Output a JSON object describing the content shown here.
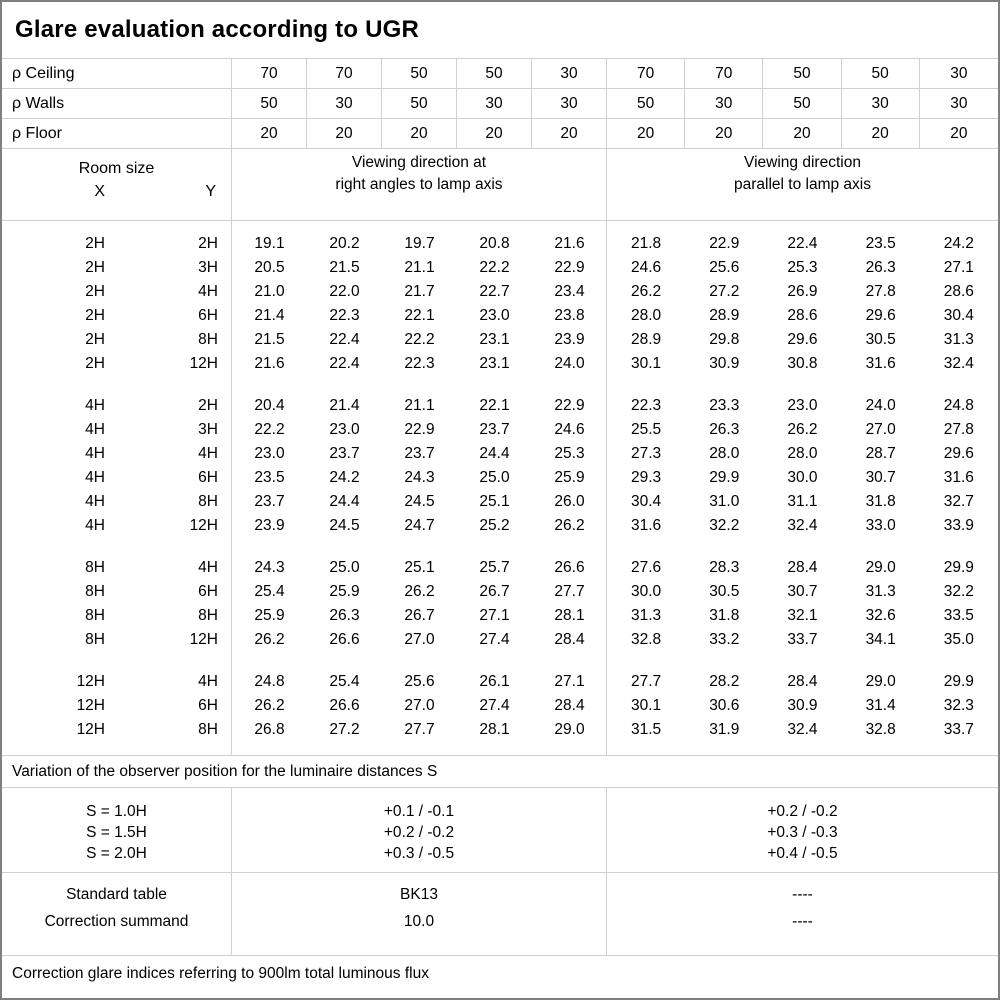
{
  "title": "Glare evaluation according to UGR",
  "colors": {
    "outer_border": "#7f7f7f",
    "grid_line": "#d0d0d0",
    "text": "#000000",
    "background": "#ffffff"
  },
  "reflectance": {
    "rows": [
      {
        "label": "ρ Ceiling",
        "values": [
          "70",
          "70",
          "50",
          "50",
          "30",
          "70",
          "70",
          "50",
          "50",
          "30"
        ]
      },
      {
        "label": "ρ Walls",
        "values": [
          "50",
          "30",
          "50",
          "30",
          "30",
          "50",
          "30",
          "50",
          "30",
          "30"
        ]
      },
      {
        "label": "ρ Floor",
        "values": [
          "20",
          "20",
          "20",
          "20",
          "20",
          "20",
          "20",
          "20",
          "20",
          "20"
        ]
      }
    ]
  },
  "header": {
    "room_size": "Room size",
    "x_label": "X",
    "y_label": "Y",
    "group_right_angles_line1": "Viewing direction at",
    "group_right_angles_line2": "right angles to lamp axis",
    "group_parallel_line1": "Viewing direction",
    "group_parallel_line2": "parallel to lamp axis"
  },
  "ugr_table": {
    "blocks": [
      {
        "rows": [
          {
            "x": "2H",
            "y": "2H",
            "values": [
              "19.1",
              "20.2",
              "19.7",
              "20.8",
              "21.6",
              "21.8",
              "22.9",
              "22.4",
              "23.5",
              "24.2"
            ]
          },
          {
            "x": "2H",
            "y": "3H",
            "values": [
              "20.5",
              "21.5",
              "21.1",
              "22.2",
              "22.9",
              "24.6",
              "25.6",
              "25.3",
              "26.3",
              "27.1"
            ]
          },
          {
            "x": "2H",
            "y": "4H",
            "values": [
              "21.0",
              "22.0",
              "21.7",
              "22.7",
              "23.4",
              "26.2",
              "27.2",
              "26.9",
              "27.8",
              "28.6"
            ]
          },
          {
            "x": "2H",
            "y": "6H",
            "values": [
              "21.4",
              "22.3",
              "22.1",
              "23.0",
              "23.8",
              "28.0",
              "28.9",
              "28.6",
              "29.6",
              "30.4"
            ]
          },
          {
            "x": "2H",
            "y": "8H",
            "values": [
              "21.5",
              "22.4",
              "22.2",
              "23.1",
              "23.9",
              "28.9",
              "29.8",
              "29.6",
              "30.5",
              "31.3"
            ]
          },
          {
            "x": "2H",
            "y": "12H",
            "values": [
              "21.6",
              "22.4",
              "22.3",
              "23.1",
              "24.0",
              "30.1",
              "30.9",
              "30.8",
              "31.6",
              "32.4"
            ]
          }
        ]
      },
      {
        "rows": [
          {
            "x": "4H",
            "y": "2H",
            "values": [
              "20.4",
              "21.4",
              "21.1",
              "22.1",
              "22.9",
              "22.3",
              "23.3",
              "23.0",
              "24.0",
              "24.8"
            ]
          },
          {
            "x": "4H",
            "y": "3H",
            "values": [
              "22.2",
              "23.0",
              "22.9",
              "23.7",
              "24.6",
              "25.5",
              "26.3",
              "26.2",
              "27.0",
              "27.8"
            ]
          },
          {
            "x": "4H",
            "y": "4H",
            "values": [
              "23.0",
              "23.7",
              "23.7",
              "24.4",
              "25.3",
              "27.3",
              "28.0",
              "28.0",
              "28.7",
              "29.6"
            ]
          },
          {
            "x": "4H",
            "y": "6H",
            "values": [
              "23.5",
              "24.2",
              "24.3",
              "25.0",
              "25.9",
              "29.3",
              "29.9",
              "30.0",
              "30.7",
              "31.6"
            ]
          },
          {
            "x": "4H",
            "y": "8H",
            "values": [
              "23.7",
              "24.4",
              "24.5",
              "25.1",
              "26.0",
              "30.4",
              "31.0",
              "31.1",
              "31.8",
              "32.7"
            ]
          },
          {
            "x": "4H",
            "y": "12H",
            "values": [
              "23.9",
              "24.5",
              "24.7",
              "25.2",
              "26.2",
              "31.6",
              "32.2",
              "32.4",
              "33.0",
              "33.9"
            ]
          }
        ]
      },
      {
        "rows": [
          {
            "x": "8H",
            "y": "4H",
            "values": [
              "24.3",
              "25.0",
              "25.1",
              "25.7",
              "26.6",
              "27.6",
              "28.3",
              "28.4",
              "29.0",
              "29.9"
            ]
          },
          {
            "x": "8H",
            "y": "6H",
            "values": [
              "25.4",
              "25.9",
              "26.2",
              "26.7",
              "27.7",
              "30.0",
              "30.5",
              "30.7",
              "31.3",
              "32.2"
            ]
          },
          {
            "x": "8H",
            "y": "8H",
            "values": [
              "25.9",
              "26.3",
              "26.7",
              "27.1",
              "28.1",
              "31.3",
              "31.8",
              "32.1",
              "32.6",
              "33.5"
            ]
          },
          {
            "x": "8H",
            "y": "12H",
            "values": [
              "26.2",
              "26.6",
              "27.0",
              "27.4",
              "28.4",
              "32.8",
              "33.2",
              "33.7",
              "34.1",
              "35.0"
            ]
          }
        ]
      },
      {
        "rows": [
          {
            "x": "12H",
            "y": "4H",
            "values": [
              "24.8",
              "25.4",
              "25.6",
              "26.1",
              "27.1",
              "27.7",
              "28.2",
              "28.4",
              "29.0",
              "29.9"
            ]
          },
          {
            "x": "12H",
            "y": "6H",
            "values": [
              "26.2",
              "26.6",
              "27.0",
              "27.4",
              "28.4",
              "30.1",
              "30.6",
              "30.9",
              "31.4",
              "32.3"
            ]
          },
          {
            "x": "12H",
            "y": "8H",
            "values": [
              "26.8",
              "27.2",
              "27.7",
              "28.1",
              "29.0",
              "31.5",
              "31.9",
              "32.4",
              "32.8",
              "33.7"
            ]
          }
        ]
      }
    ]
  },
  "variation_caption": "Variation of the observer position for the luminaire distances S",
  "variation": {
    "labels": [
      "S = 1.0H",
      "S = 1.5H",
      "S = 2.0H"
    ],
    "right_angles": [
      "+0.1 / -0.1",
      "+0.2 / -0.2",
      "+0.3 / -0.5"
    ],
    "parallel": [
      "+0.2 / -0.2",
      "+0.3 / -0.3",
      "+0.4 / -0.5"
    ]
  },
  "summary": {
    "standard_table_label": "Standard table",
    "standard_table_right_angles": "BK13",
    "standard_table_parallel": "----",
    "correction_summand_label": "Correction summand",
    "correction_summand_right_angles": "10.0",
    "correction_summand_parallel": "----"
  },
  "footer_caption": "Correction glare indices referring to 900lm total luminous flux"
}
